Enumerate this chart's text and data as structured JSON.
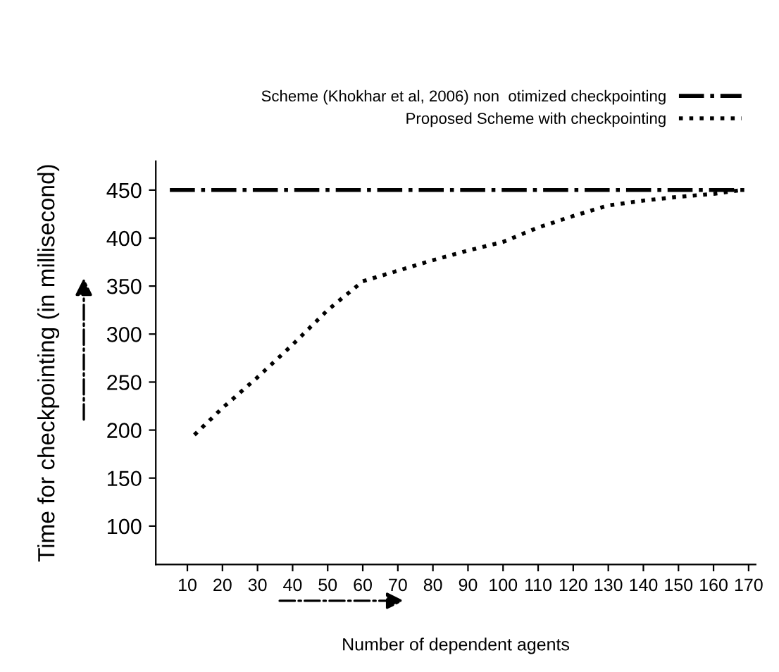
{
  "chart_data": {
    "type": "line",
    "xlabel": "Number of dependent agents",
    "ylabel": "Time for checkpointing (in millisecond)",
    "xlim": [
      1,
      172
    ],
    "xticks": [
      10,
      20,
      30,
      40,
      50,
      60,
      70,
      80,
      90,
      100,
      110,
      120,
      130,
      140,
      150,
      160,
      170
    ],
    "ylim": [
      60,
      480
    ],
    "yticks": [
      100,
      150,
      200,
      250,
      300,
      350,
      400,
      450
    ],
    "legend": "top right",
    "grid": false,
    "series": [
      {
        "name": "Scheme (Khokhar et al, 2006) non  otimized checkpointing",
        "color": "#000000",
        "line_style": "dashdot",
        "x": [
          5,
          170
        ],
        "values": [
          450,
          450
        ]
      },
      {
        "name": "Proposed Scheme with checkpointing",
        "color": "#000000",
        "line_style": "dotted",
        "x": [
          12,
          20,
          30,
          40,
          50,
          60,
          70,
          80,
          90,
          100,
          110,
          120,
          130,
          140,
          150,
          160,
          168
        ],
        "values": [
          195,
          223,
          255,
          289,
          325,
          355,
          366,
          377,
          387,
          396,
          411,
          423,
          434,
          439,
          443,
          446,
          450
        ]
      }
    ]
  }
}
